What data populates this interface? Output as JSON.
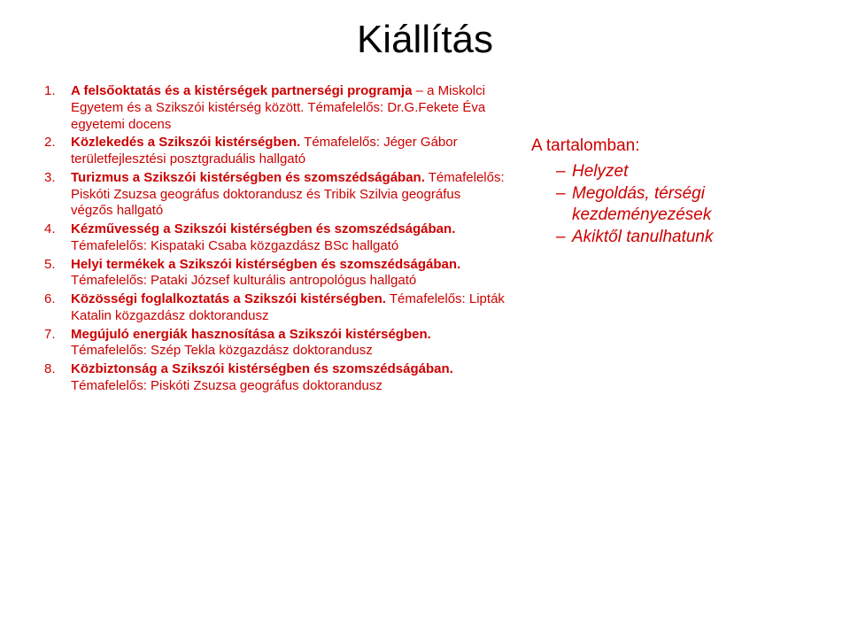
{
  "title": "Kiállítás",
  "list": [
    {
      "n": "1.",
      "bold": "A felsőoktatás és a kistérségek partnerségi programja",
      "rest": " – a Miskolci Egyetem és a Szikszói kistérség között. Témafelelős: Dr.G.Fekete Éva egyetemi docens"
    },
    {
      "n": "2.",
      "bold": "Közlekedés a Szikszói kistérségben.",
      "rest": " Témafelelős: Jéger Gábor területfejlesztési posztgraduális hallgató"
    },
    {
      "n": "3.",
      "bold": "Turizmus a Szikszói kistérségben és szomszédságában.",
      "rest": " Témafelelős: Piskóti Zsuzsa geográfus doktorandusz és Tribik Szilvia geográfus végzős hallgató"
    },
    {
      "n": "4.",
      "bold": "Kézművesség a Szikszói kistérségben és szomszédságában.",
      "rest": " Témafelelős: Kispataki Csaba közgazdász BSc hallgató"
    },
    {
      "n": "5.",
      "bold": "Helyi termékek a Szikszói kistérségben és szomszédságában.",
      "rest": " Témafelelős: Pataki József kulturális antropológus hallgató"
    },
    {
      "n": "6.",
      "bold": "Közösségi foglalkoztatás a Szikszói kistérségben.",
      "rest": " Témafelelős: Lipták Katalin közgazdász doktorandusz"
    },
    {
      "n": "7.",
      "bold": "Megújuló energiák hasznosítása a Szikszói kistérségben.",
      "rest": " Témafelelős: Szép Tekla közgazdász doktorandusz"
    },
    {
      "n": "8.",
      "bold": "Közbiztonság a Szikszói kistérségben és szomszédságában.",
      "rest": " Témafelelős: Piskóti Zsuzsa geográfus doktorandusz"
    }
  ],
  "right": {
    "head": "A tartalomban:",
    "items": [
      "Helyzet",
      "Megoldás, térségi kezdeményezések",
      "Akiktől tanulhatunk"
    ]
  }
}
